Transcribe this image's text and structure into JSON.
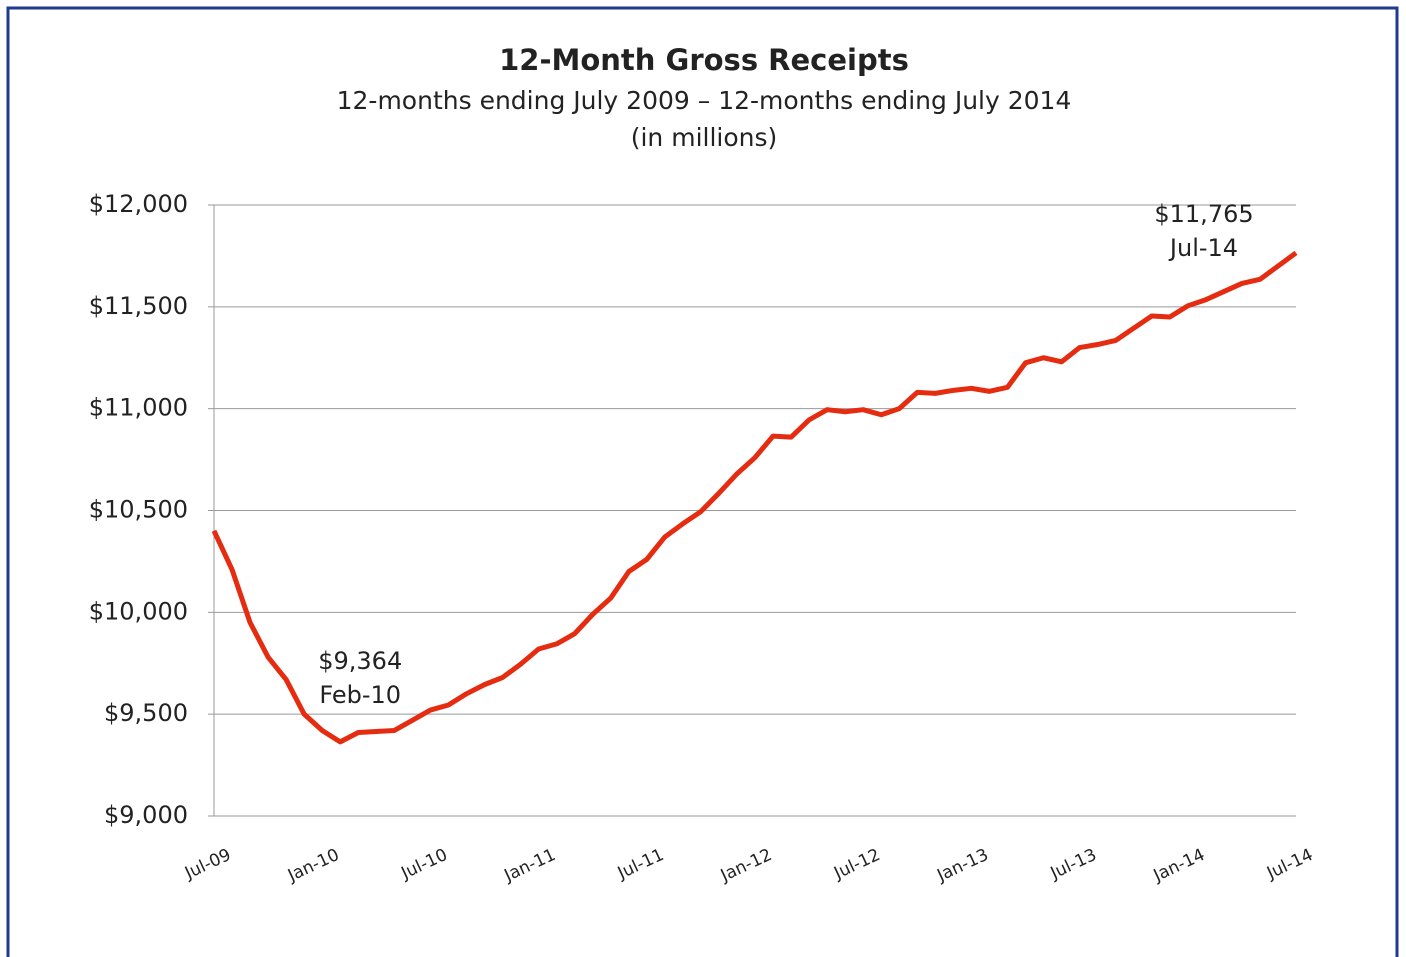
{
  "chart_data": {
    "type": "line",
    "title": "12-Month Gross Receipts",
    "subtitle": [
      "12-months ending July 2009 – 12-months ending July 2014",
      "(in millions)"
    ],
    "categories": [
      "Jul-09",
      null,
      null,
      null,
      null,
      null,
      "Jan-10",
      null,
      null,
      null,
      null,
      null,
      "Jul-10",
      null,
      null,
      null,
      null,
      null,
      "Jan-11",
      null,
      null,
      null,
      null,
      null,
      "Jul-11",
      null,
      null,
      null,
      null,
      null,
      "Jan-12",
      null,
      null,
      null,
      null,
      null,
      "Jul-12",
      null,
      null,
      null,
      null,
      null,
      "Jan-13",
      null,
      null,
      null,
      null,
      null,
      "Jul-13",
      null,
      null,
      null,
      null,
      null,
      "Jan-14",
      null,
      null,
      null,
      null,
      null,
      "Jul-14"
    ],
    "series": [
      {
        "name": "12-Month Gross Receipts",
        "color": "#e52b10",
        "values": [
          10400,
          10210,
          9950,
          9780,
          9670,
          9500,
          9420,
          9364,
          9410,
          9415,
          9420,
          9470,
          9520,
          9545,
          9600,
          9645,
          9680,
          9745,
          9820,
          9845,
          9895,
          9990,
          10070,
          10200,
          10260,
          10370,
          10435,
          10495,
          10585,
          10680,
          10760,
          10865,
          10860,
          10945,
          10995,
          10985,
          10995,
          10970,
          11000,
          11080,
          11075,
          11090,
          11100,
          11085,
          11105,
          11225,
          11250,
          11230,
          11300,
          11315,
          11335,
          11395,
          11455,
          11450,
          11505,
          11535,
          11575,
          11615,
          11635,
          11700,
          11765
        ]
      }
    ],
    "ylim": [
      9000,
      12000
    ],
    "yticks": [
      {
        "value": 9000,
        "label": "$9,000"
      },
      {
        "value": 9500,
        "label": "$9,500"
      },
      {
        "value": 10000,
        "label": "$10,000"
      },
      {
        "value": 10500,
        "label": "$10,500"
      },
      {
        "value": 11000,
        "label": "$11,000"
      },
      {
        "value": 11500,
        "label": "$11,500"
      },
      {
        "value": 12000,
        "label": "$12,000"
      }
    ],
    "grid": true,
    "annotations": [
      {
        "value_label": "$9,364",
        "date": "Feb-10",
        "index": 7
      },
      {
        "value_label": "$11,765",
        "date": "Jul-14",
        "index": 60
      }
    ]
  }
}
